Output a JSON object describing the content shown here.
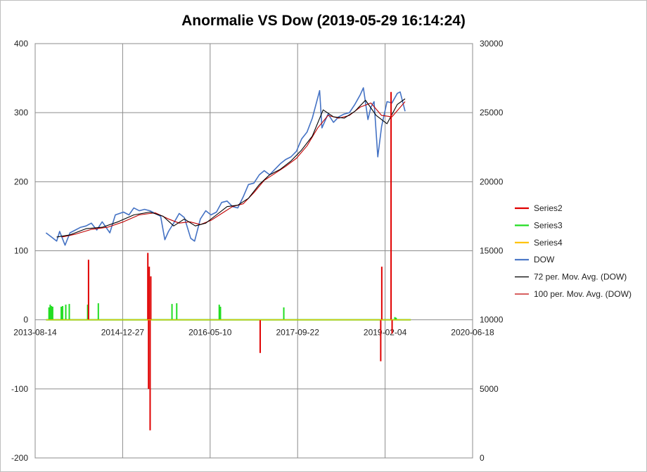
{
  "chart_data": {
    "type": "line",
    "title": "Anormalie VS Dow (2019-05-29 16:14:24)",
    "xlabel": "",
    "ylabel": "",
    "x_axis": {
      "type": "date",
      "range": [
        "2013-08-14",
        "2020-06-18"
      ],
      "ticks": [
        "2013-08-14",
        "2014-12-27",
        "2016-05-10",
        "2017-09-22",
        "2019-02-04",
        "2020-06-18"
      ]
    },
    "y_left": {
      "range": [
        -200,
        400
      ],
      "ticks": [
        "-200",
        "-100",
        "0",
        "100",
        "200",
        "300",
        "400"
      ]
    },
    "y_right": {
      "range": [
        0,
        30000
      ],
      "ticks": [
        "0",
        "5000",
        "10000",
        "15000",
        "20000",
        "25000",
        "30000"
      ]
    },
    "grid": true,
    "legend_position": "right",
    "legend": [
      "Series2",
      "Series3",
      "Series4",
      "DOW",
      "72 per. Mov. Avg. (DOW)",
      "100 per. Mov. Avg. (DOW)"
    ],
    "colors": {
      "Series2": "#e00000",
      "Series3": "#22dd22",
      "Series4": "#ffc000",
      "DOW": "#4472c4",
      "72 per. Mov. Avg. (DOW)": "#000000",
      "100 per. Mov. Avg. (DOW)": "#c00000"
    },
    "series": [
      {
        "name": "Series2",
        "axis": "left",
        "render": "spikes",
        "points": [
          [
            "2014-06-15",
            87
          ],
          [
            "2015-05-20",
            97
          ],
          [
            "2015-05-24",
            -100
          ],
          [
            "2015-05-28",
            77
          ],
          [
            "2015-06-02",
            -160
          ],
          [
            "2015-06-06",
            63
          ],
          [
            "2017-02-20",
            -48
          ],
          [
            "2019-01-10",
            -60
          ],
          [
            "2019-01-16",
            77
          ],
          [
            "2019-03-10",
            330
          ],
          [
            "2019-03-16",
            -20
          ]
        ]
      },
      {
        "name": "Series3",
        "axis": "left",
        "render": "spikes",
        "points": [
          [
            "2013-11-01",
            18
          ],
          [
            "2013-11-08",
            22
          ],
          [
            "2013-11-15",
            20
          ],
          [
            "2013-11-22",
            19
          ],
          [
            "2014-01-10",
            19
          ],
          [
            "2014-01-18",
            20
          ],
          [
            "2014-02-05",
            22
          ],
          [
            "2014-02-25",
            23
          ],
          [
            "2014-06-10",
            22
          ],
          [
            "2014-08-10",
            24
          ],
          [
            "2015-10-05",
            23
          ],
          [
            "2015-11-01",
            24
          ],
          [
            "2016-07-01",
            22
          ],
          [
            "2016-07-08",
            19
          ],
          [
            "2017-07-05",
            18
          ],
          [
            "2019-04-01",
            4
          ],
          [
            "2019-04-08",
            3
          ]
        ]
      },
      {
        "name": "Series4",
        "axis": "left",
        "render": "line",
        "points": [
          [
            "2013-10-15",
            0
          ],
          [
            "2019-07-01",
            0
          ]
        ]
      },
      {
        "name": "DOW",
        "axis": "right",
        "render": "line",
        "points": [
          [
            "2013-10-15",
            16300
          ],
          [
            "2013-11-15",
            16000
          ],
          [
            "2013-12-15",
            15700
          ],
          [
            "2014-01-01",
            16400
          ],
          [
            "2014-02-01",
            15400
          ],
          [
            "2014-03-01",
            16300
          ],
          [
            "2014-04-01",
            16500
          ],
          [
            "2014-05-01",
            16700
          ],
          [
            "2014-06-01",
            16800
          ],
          [
            "2014-07-01",
            17000
          ],
          [
            "2014-08-01",
            16500
          ],
          [
            "2014-09-01",
            17100
          ],
          [
            "2014-10-15",
            16300
          ],
          [
            "2014-11-15",
            17600
          ],
          [
            "2015-01-01",
            17800
          ],
          [
            "2015-02-01",
            17600
          ],
          [
            "2015-03-01",
            18100
          ],
          [
            "2015-04-01",
            17900
          ],
          [
            "2015-05-01",
            18000
          ],
          [
            "2015-06-01",
            17900
          ],
          [
            "2015-07-01",
            17700
          ],
          [
            "2015-08-01",
            17500
          ],
          [
            "2015-08-25",
            15800
          ],
          [
            "2015-09-15",
            16400
          ],
          [
            "2015-10-15",
            17000
          ],
          [
            "2015-11-15",
            17700
          ],
          [
            "2015-12-15",
            17400
          ],
          [
            "2016-01-20",
            15900
          ],
          [
            "2016-02-11",
            15700
          ],
          [
            "2016-03-15",
            17300
          ],
          [
            "2016-04-15",
            17900
          ],
          [
            "2016-05-15",
            17600
          ],
          [
            "2016-06-15",
            17800
          ],
          [
            "2016-07-15",
            18500
          ],
          [
            "2016-08-15",
            18600
          ],
          [
            "2016-09-15",
            18200
          ],
          [
            "2016-10-15",
            18100
          ],
          [
            "2016-11-15",
            18900
          ],
          [
            "2016-12-15",
            19800
          ],
          [
            "2017-01-15",
            19900
          ],
          [
            "2017-02-15",
            20500
          ],
          [
            "2017-03-15",
            20800
          ],
          [
            "2017-04-15",
            20500
          ],
          [
            "2017-05-15",
            20900
          ],
          [
            "2017-06-15",
            21300
          ],
          [
            "2017-07-15",
            21600
          ],
          [
            "2017-08-15",
            21800
          ],
          [
            "2017-09-15",
            22200
          ],
          [
            "2017-10-15",
            23100
          ],
          [
            "2017-11-15",
            23600
          ],
          [
            "2017-12-15",
            24600
          ],
          [
            "2018-01-26",
            26600
          ],
          [
            "2018-02-08",
            23900
          ],
          [
            "2018-03-15",
            24900
          ],
          [
            "2018-04-15",
            24300
          ],
          [
            "2018-05-15",
            24700
          ],
          [
            "2018-06-15",
            24900
          ],
          [
            "2018-07-15",
            25000
          ],
          [
            "2018-08-15",
            25600
          ],
          [
            "2018-09-15",
            26300
          ],
          [
            "2018-10-03",
            26800
          ],
          [
            "2018-10-29",
            24500
          ],
          [
            "2018-11-15",
            25400
          ],
          [
            "2018-12-03",
            25800
          ],
          [
            "2018-12-24",
            21800
          ],
          [
            "2019-01-15",
            24000
          ],
          [
            "2019-02-15",
            25800
          ],
          [
            "2019-03-15",
            25700
          ],
          [
            "2019-04-15",
            26400
          ],
          [
            "2019-05-01",
            26500
          ],
          [
            "2019-05-29",
            25100
          ]
        ]
      },
      {
        "name": "72 per. Mov. Avg. (DOW)",
        "axis": "right",
        "render": "line",
        "points": [
          [
            "2013-12-15",
            16000
          ],
          [
            "2014-03-01",
            16150
          ],
          [
            "2014-06-01",
            16600
          ],
          [
            "2014-09-01",
            16700
          ],
          [
            "2014-12-01",
            17100
          ],
          [
            "2015-03-01",
            17600
          ],
          [
            "2015-06-01",
            17800
          ],
          [
            "2015-08-15",
            17500
          ],
          [
            "2015-10-15",
            16800
          ],
          [
            "2015-12-15",
            17300
          ],
          [
            "2016-02-15",
            16800
          ],
          [
            "2016-04-15",
            17000
          ],
          [
            "2016-06-15",
            17600
          ],
          [
            "2016-08-15",
            18200
          ],
          [
            "2016-10-15",
            18300
          ],
          [
            "2016-12-15",
            18800
          ],
          [
            "2017-02-15",
            19800
          ],
          [
            "2017-04-15",
            20500
          ],
          [
            "2017-06-15",
            20900
          ],
          [
            "2017-08-15",
            21500
          ],
          [
            "2017-10-15",
            22300
          ],
          [
            "2017-12-15",
            23300
          ],
          [
            "2018-02-15",
            25200
          ],
          [
            "2018-04-15",
            24700
          ],
          [
            "2018-06-15",
            24600
          ],
          [
            "2018-08-15",
            25100
          ],
          [
            "2018-10-15",
            25900
          ],
          [
            "2018-12-15",
            24800
          ],
          [
            "2019-02-15",
            24200
          ],
          [
            "2019-04-15",
            25600
          ],
          [
            "2019-05-29",
            26000
          ]
        ]
      },
      {
        "name": "100 per. Mov. Avg. (DOW)",
        "axis": "right",
        "render": "line",
        "points": [
          [
            "2014-01-15",
            16000
          ],
          [
            "2014-04-01",
            16200
          ],
          [
            "2014-07-01",
            16550
          ],
          [
            "2014-10-01",
            16700
          ],
          [
            "2015-01-01",
            17100
          ],
          [
            "2015-04-01",
            17600
          ],
          [
            "2015-07-01",
            17750
          ],
          [
            "2015-09-15",
            17300
          ],
          [
            "2015-11-15",
            17000
          ],
          [
            "2016-01-15",
            17100
          ],
          [
            "2016-03-15",
            16900
          ],
          [
            "2016-05-15",
            17200
          ],
          [
            "2016-07-15",
            17700
          ],
          [
            "2016-09-15",
            18200
          ],
          [
            "2016-11-15",
            18400
          ],
          [
            "2017-01-15",
            19200
          ],
          [
            "2017-03-15",
            20100
          ],
          [
            "2017-05-15",
            20600
          ],
          [
            "2017-07-15",
            21100
          ],
          [
            "2017-09-15",
            21700
          ],
          [
            "2017-11-15",
            22600
          ],
          [
            "2018-01-15",
            23900
          ],
          [
            "2018-03-15",
            24800
          ],
          [
            "2018-05-15",
            24600
          ],
          [
            "2018-07-15",
            24800
          ],
          [
            "2018-09-15",
            25400
          ],
          [
            "2018-11-15",
            25700
          ],
          [
            "2019-01-15",
            24800
          ],
          [
            "2019-03-15",
            24700
          ],
          [
            "2019-05-29",
            25800
          ]
        ]
      }
    ]
  }
}
